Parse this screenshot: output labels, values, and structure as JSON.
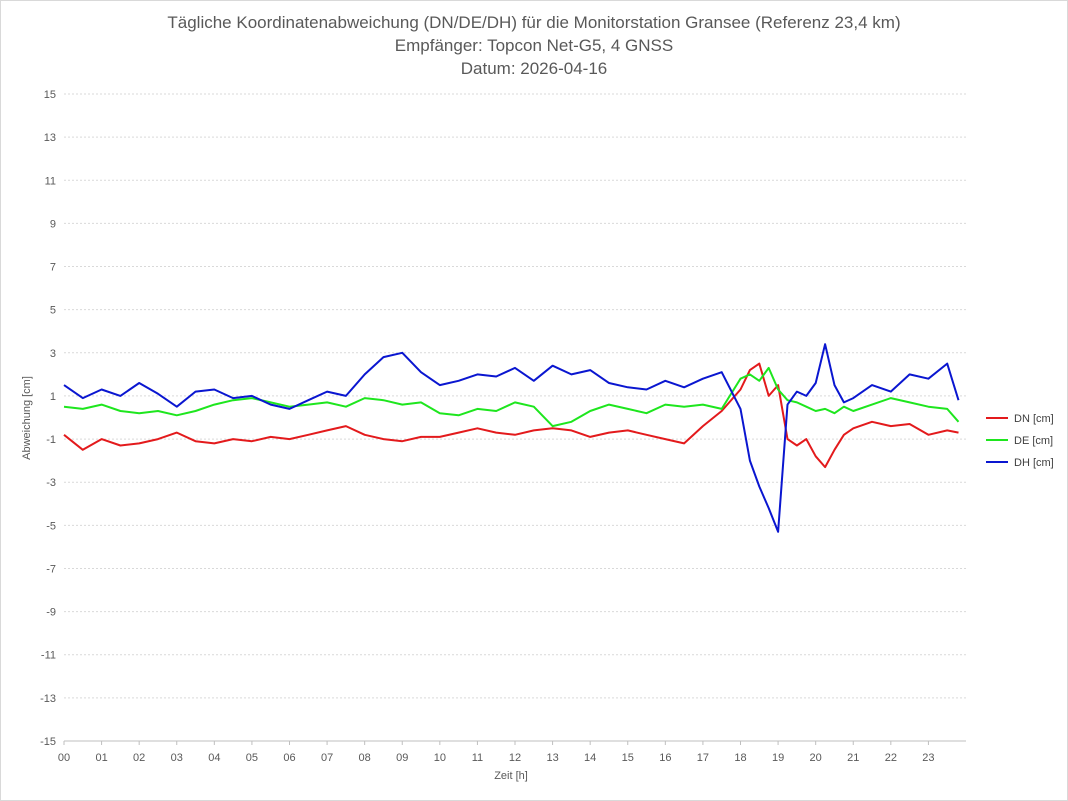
{
  "chart_data": {
    "type": "line",
    "title": "Tägliche Koordinatenabweichung (DN/DE/DH) für die Monitorstation Gransee (Referenz 23,4 km)",
    "subtitle": "Empfänger: Topcon Net-G5, 4 GNSS",
    "date_line": "Datum: 2026-04-16",
    "xlabel": "Zeit [h]",
    "ylabel": "Abweichung [cm]",
    "xlim": [
      0,
      24
    ],
    "ylim": [
      -15,
      15
    ],
    "x_ticks": [
      "00",
      "01",
      "02",
      "03",
      "04",
      "05",
      "06",
      "07",
      "08",
      "09",
      "10",
      "11",
      "12",
      "13",
      "14",
      "15",
      "16",
      "17",
      "18",
      "19",
      "20",
      "21",
      "22",
      "23"
    ],
    "y_ticks": [
      15,
      13,
      11,
      9,
      7,
      5,
      3,
      1,
      -1,
      -3,
      -5,
      -7,
      -9,
      -11,
      -13,
      -15
    ],
    "grid": "horizontal dotted",
    "legend_position": "right",
    "series": [
      {
        "name": "DN [cm]",
        "color": "#e31a1c",
        "x": [
          0,
          0.5,
          1,
          1.5,
          2,
          2.5,
          3,
          3.5,
          4,
          4.5,
          5,
          5.5,
          6,
          6.5,
          7,
          7.5,
          8,
          8.5,
          9,
          9.5,
          10,
          10.5,
          11,
          11.5,
          12,
          12.5,
          13,
          13.5,
          14,
          14.5,
          15,
          15.5,
          16,
          16.5,
          17,
          17.5,
          18,
          18.25,
          18.5,
          18.75,
          19,
          19.25,
          19.5,
          19.75,
          20,
          20.25,
          20.5,
          20.75,
          21,
          21.5,
          22,
          22.5,
          23,
          23.5,
          23.8
        ],
        "values": [
          -0.8,
          -1.5,
          -1.0,
          -1.3,
          -1.2,
          -1.0,
          -0.7,
          -1.1,
          -1.2,
          -1.0,
          -1.1,
          -0.9,
          -1.0,
          -0.8,
          -0.6,
          -0.4,
          -0.8,
          -1.0,
          -1.1,
          -0.9,
          -0.9,
          -0.7,
          -0.5,
          -0.7,
          -0.8,
          -0.6,
          -0.5,
          -0.6,
          -0.9,
          -0.7,
          -0.6,
          -0.8,
          -1.0,
          -1.2,
          -0.4,
          0.3,
          1.3,
          2.2,
          2.5,
          1.0,
          1.5,
          -1.0,
          -1.3,
          -1.0,
          -1.8,
          -2.3,
          -1.5,
          -0.8,
          -0.5,
          -0.2,
          -0.4,
          -0.3,
          -0.8,
          -0.6,
          -0.7
        ]
      },
      {
        "name": "DE [cm]",
        "color": "#1ee61e",
        "x": [
          0,
          0.5,
          1,
          1.5,
          2,
          2.5,
          3,
          3.5,
          4,
          4.5,
          5,
          5.5,
          6,
          6.5,
          7,
          7.5,
          8,
          8.5,
          9,
          9.5,
          10,
          10.5,
          11,
          11.5,
          12,
          12.5,
          13,
          13.5,
          14,
          14.5,
          15,
          15.5,
          16,
          16.5,
          17,
          17.5,
          18,
          18.25,
          18.5,
          18.75,
          19,
          19.25,
          19.5,
          19.75,
          20,
          20.25,
          20.5,
          20.75,
          21,
          21.5,
          22,
          22.5,
          23,
          23.5,
          23.8
        ],
        "values": [
          0.5,
          0.4,
          0.6,
          0.3,
          0.2,
          0.3,
          0.1,
          0.3,
          0.6,
          0.8,
          0.9,
          0.7,
          0.5,
          0.6,
          0.7,
          0.5,
          0.9,
          0.8,
          0.6,
          0.7,
          0.2,
          0.1,
          0.4,
          0.3,
          0.7,
          0.5,
          -0.4,
          -0.2,
          0.3,
          0.6,
          0.4,
          0.2,
          0.6,
          0.5,
          0.6,
          0.4,
          1.8,
          2.0,
          1.7,
          2.3,
          1.3,
          0.8,
          0.7,
          0.5,
          0.3,
          0.4,
          0.2,
          0.5,
          0.3,
          0.6,
          0.9,
          0.7,
          0.5,
          0.4,
          -0.2
        ]
      },
      {
        "name": "DH [cm]",
        "color": "#0a16d0",
        "x": [
          0,
          0.5,
          1,
          1.5,
          2,
          2.5,
          3,
          3.5,
          4,
          4.5,
          5,
          5.5,
          6,
          6.5,
          7,
          7.5,
          8,
          8.5,
          9,
          9.5,
          10,
          10.5,
          11,
          11.5,
          12,
          12.5,
          13,
          13.5,
          14,
          14.5,
          15,
          15.5,
          16,
          16.5,
          17,
          17.5,
          18,
          18.25,
          18.5,
          18.75,
          19,
          19.25,
          19.5,
          19.75,
          20,
          20.25,
          20.5,
          20.75,
          21,
          21.5,
          22,
          22.5,
          23,
          23.5,
          23.8
        ],
        "values": [
          1.5,
          0.9,
          1.3,
          1.0,
          1.6,
          1.1,
          0.5,
          1.2,
          1.3,
          0.9,
          1.0,
          0.6,
          0.4,
          0.8,
          1.2,
          1.0,
          2.0,
          2.8,
          3.0,
          2.1,
          1.5,
          1.7,
          2.0,
          1.9,
          2.3,
          1.7,
          2.4,
          2.0,
          2.2,
          1.6,
          1.4,
          1.3,
          1.7,
          1.4,
          1.8,
          2.1,
          0.4,
          -2.0,
          -3.2,
          -4.2,
          -5.3,
          0.6,
          1.2,
          1.0,
          1.6,
          3.4,
          1.5,
          0.7,
          0.9,
          1.5,
          1.2,
          2.0,
          1.8,
          2.5,
          0.8
        ]
      }
    ]
  }
}
